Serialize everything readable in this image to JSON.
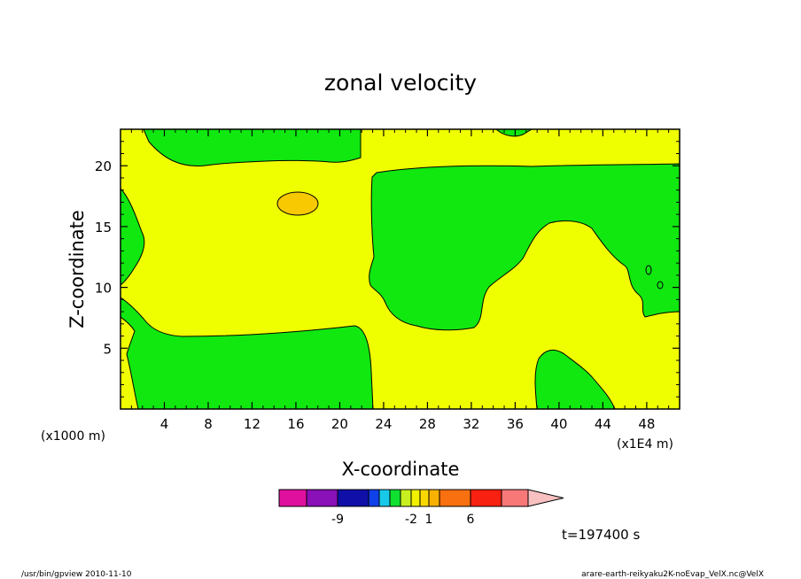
{
  "chart_data": {
    "type": "heatmap",
    "title": "zonal velocity",
    "xlabel": "X-coordinate",
    "ylabel": "Z-coordinate",
    "x_unit_label": "(x1E4 m)",
    "y_unit_label": "(x1000 m)",
    "xlim": [
      0,
      51
    ],
    "ylim": [
      0,
      23
    ],
    "x_ticks": [
      "4",
      "8",
      "12",
      "16",
      "20",
      "24",
      "28",
      "32",
      "36",
      "40",
      "44",
      "48"
    ],
    "y_ticks": [
      "5",
      "10",
      "15",
      "20"
    ],
    "x_tick_values": [
      4,
      8,
      12,
      16,
      20,
      24,
      28,
      32,
      36,
      40,
      44,
      48
    ],
    "y_tick_values": [
      5,
      10,
      15,
      20
    ],
    "colorbar": {
      "colors": [
        "#e0109e",
        "#8a10b8",
        "#1010a8",
        "#1040e8",
        "#18c8e8",
        "#10e030",
        "#c8f020",
        "#f0f000",
        "#f8d800",
        "#f8b000",
        "#f87010",
        "#f82010",
        "#f87878",
        "#f8c0c0"
      ],
      "labels": [
        "-9",
        "-2",
        "1",
        "6"
      ],
      "label_positions": [
        1,
        6,
        8,
        10
      ]
    },
    "time_label": "t=197400 s",
    "background_color": "#f0ff00",
    "region_colors": {
      "green": "#10e810",
      "yellow": "#f0ff00",
      "orange": "#f8c800"
    }
  },
  "footer": {
    "left": "/usr/bin/gpview   2010-11-10",
    "right": "arare-earth-reikyaku2K-noEvap_VelX.nc@VelX"
  }
}
